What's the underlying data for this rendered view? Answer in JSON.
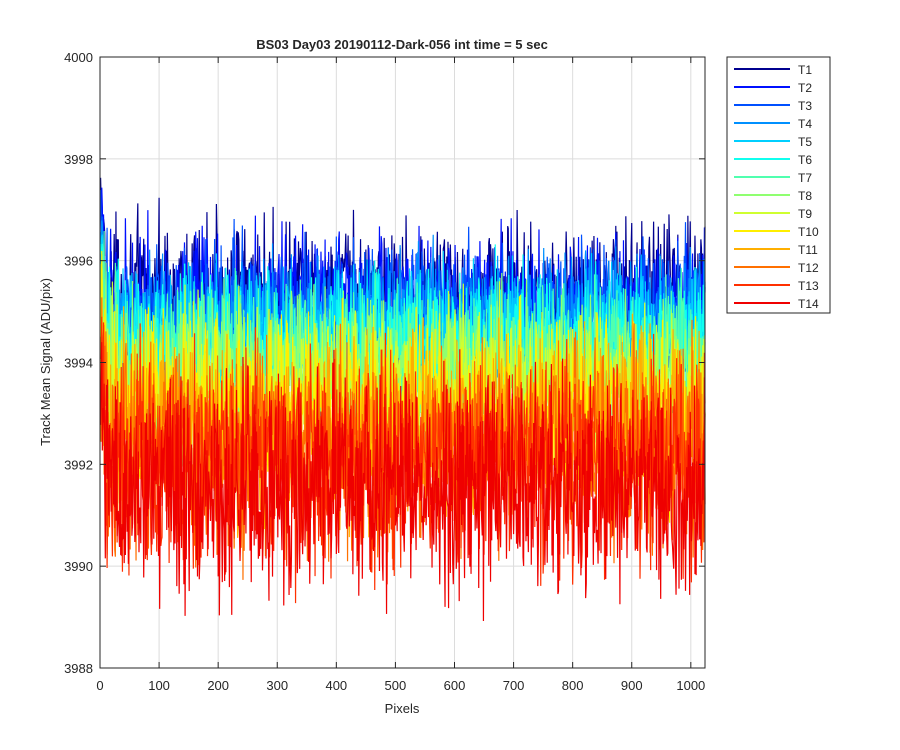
{
  "chart_data": {
    "type": "line",
    "title": "BS03 Day03 20190112-Dark-056 int time = 5 sec",
    "xlabel": "Pixels",
    "ylabel": "Track Mean Signal (ADU/pix)",
    "xlim": [
      0,
      1024
    ],
    "ylim": [
      3988,
      4000
    ],
    "xticks": [
      0,
      100,
      200,
      300,
      400,
      500,
      600,
      700,
      800,
      900,
      1000
    ],
    "yticks": [
      3988,
      3990,
      3992,
      3994,
      3996,
      3998,
      4000
    ],
    "grid": true,
    "legend_position": "outside-top-right",
    "series_summary": "Each track is a noisy trace over 1024 pixels; values vary roughly +/-1 ADU around the listed mean. Track mean levels decrease from T1 (highest) to T14 (lowest).",
    "series": [
      {
        "name": "T1",
        "color": "#00008F",
        "mean": 3995.3,
        "noise": 0.7
      },
      {
        "name": "T2",
        "color": "#0010FF",
        "mean": 3995.1,
        "noise": 0.7
      },
      {
        "name": "T3",
        "color": "#0050FF",
        "mean": 3994.9,
        "noise": 0.7
      },
      {
        "name": "T4",
        "color": "#0090FF",
        "mean": 3994.7,
        "noise": 0.7
      },
      {
        "name": "T5",
        "color": "#00CFFF",
        "mean": 3994.5,
        "noise": 0.7
      },
      {
        "name": "T6",
        "color": "#10FFEF",
        "mean": 3994.3,
        "noise": 0.7
      },
      {
        "name": "T7",
        "color": "#50FFAF",
        "mean": 3994.0,
        "noise": 0.75
      },
      {
        "name": "T8",
        "color": "#8FFF70",
        "mean": 3993.7,
        "noise": 0.75
      },
      {
        "name": "T9",
        "color": "#CFFF30",
        "mean": 3993.4,
        "noise": 0.8
      },
      {
        "name": "T10",
        "color": "#FFEF00",
        "mean": 3993.1,
        "noise": 0.85
      },
      {
        "name": "T11",
        "color": "#FFAF00",
        "mean": 3992.7,
        "noise": 0.9
      },
      {
        "name": "T12",
        "color": "#FF7000",
        "mean": 3992.3,
        "noise": 0.95
      },
      {
        "name": "T13",
        "color": "#FF3000",
        "mean": 3992.0,
        "noise": 1.0
      },
      {
        "name": "T14",
        "color": "#EF0000",
        "mean": 3991.6,
        "noise": 1.05
      }
    ]
  }
}
